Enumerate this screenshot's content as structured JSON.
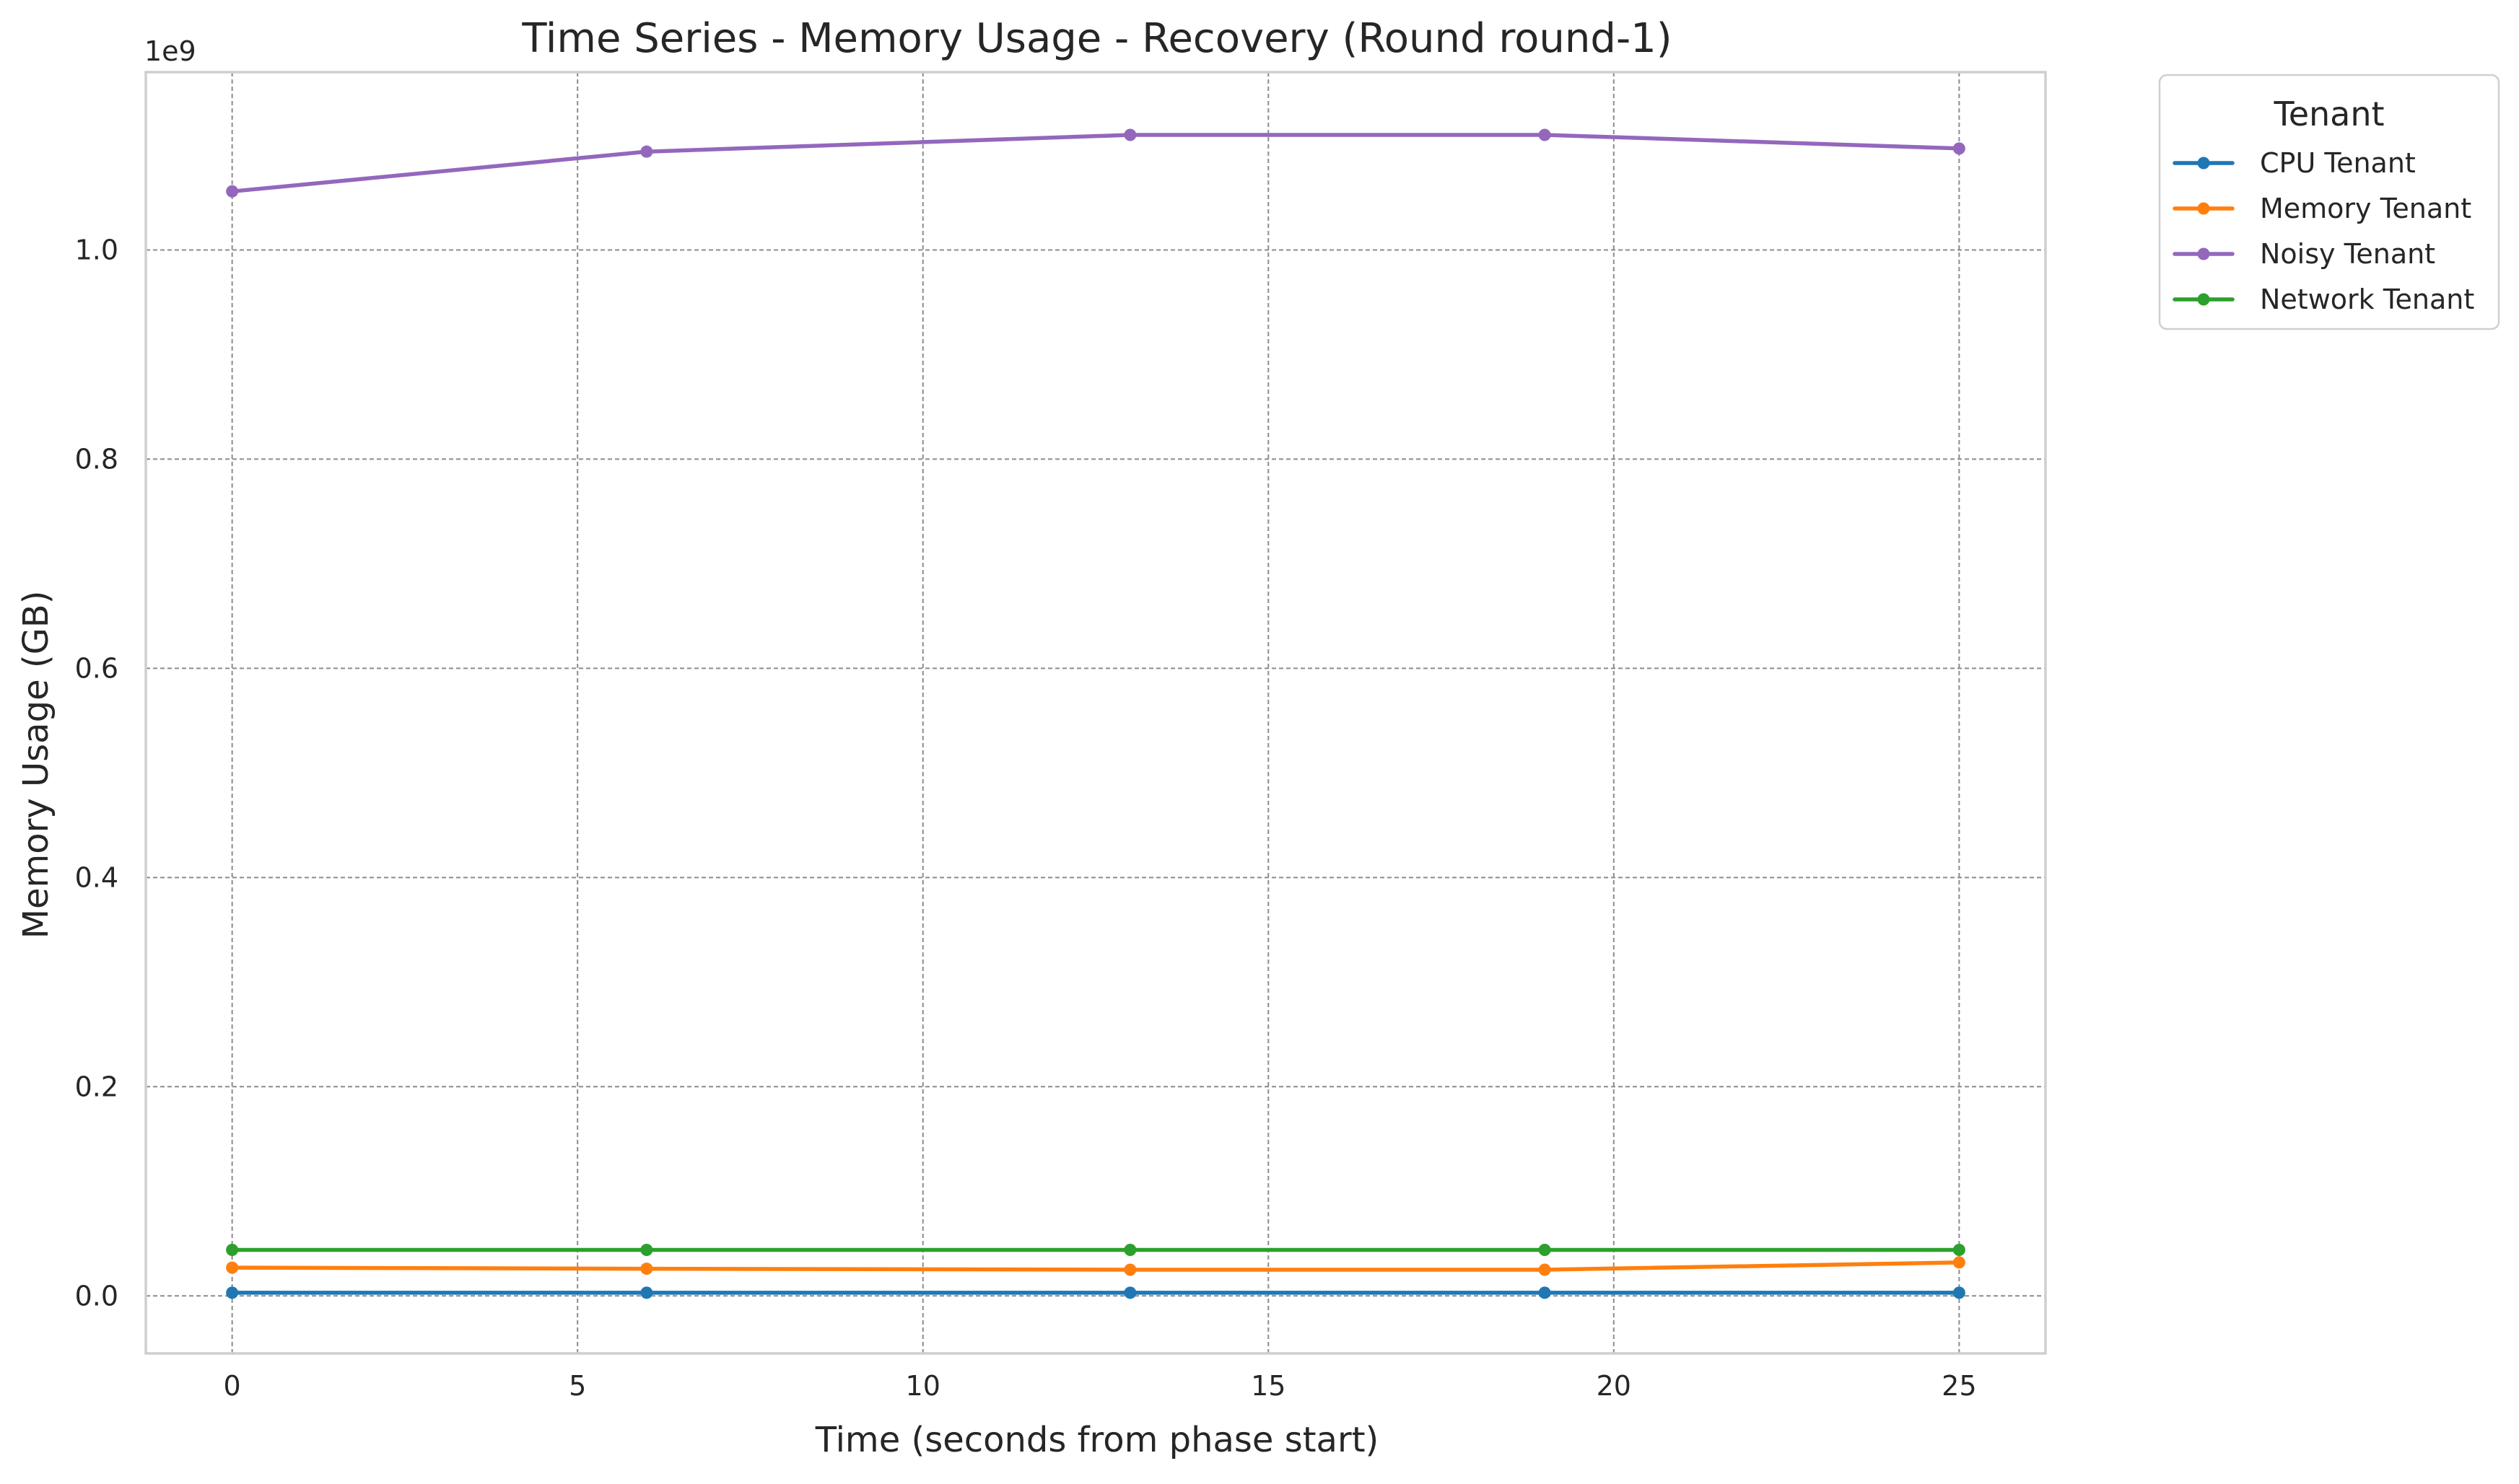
{
  "chart_data": {
    "type": "line",
    "title": "Time Series - Memory Usage - Recovery (Round round-1)",
    "xlabel": "Time (seconds from phase start)",
    "ylabel": "Memory Usage (GB)",
    "y_offset_label": "1e9",
    "xlim": [
      -1.25,
      26.25
    ],
    "ylim": [
      -0.055,
      1.17
    ],
    "x_ticks": [
      0,
      5,
      10,
      15,
      20,
      25
    ],
    "x_tick_labels": [
      "0",
      "5",
      "10",
      "15",
      "20",
      "25"
    ],
    "y_ticks": [
      0.0,
      0.2,
      0.4,
      0.6,
      0.8,
      1.0
    ],
    "y_tick_labels": [
      "0.0",
      "0.2",
      "0.4",
      "0.6",
      "0.8",
      "1.0"
    ],
    "y_scale_factor": 1000000000,
    "grid": true,
    "legend_title": "Tenant",
    "legend_position": "outside-top-right",
    "series": [
      {
        "name": "CPU Tenant",
        "color": "#1f77b4",
        "x": [
          0,
          6,
          13,
          19,
          25
        ],
        "y": [
          0.003,
          0.003,
          0.003,
          0.003,
          0.003
        ]
      },
      {
        "name": "Memory Tenant",
        "color": "#ff7f0e",
        "x": [
          0,
          6,
          13,
          19,
          25
        ],
        "y": [
          0.027,
          0.026,
          0.025,
          0.025,
          0.032
        ]
      },
      {
        "name": "Noisy Tenant",
        "color": "#9467bd",
        "x": [
          0,
          6,
          13,
          19,
          25
        ],
        "y": [
          1.056,
          1.094,
          1.11,
          1.11,
          1.097
        ]
      },
      {
        "name": "Network Tenant",
        "color": "#2ca02c",
        "x": [
          0,
          6,
          13,
          19,
          25
        ],
        "y": [
          0.044,
          0.044,
          0.044,
          0.044,
          0.044
        ]
      }
    ]
  }
}
